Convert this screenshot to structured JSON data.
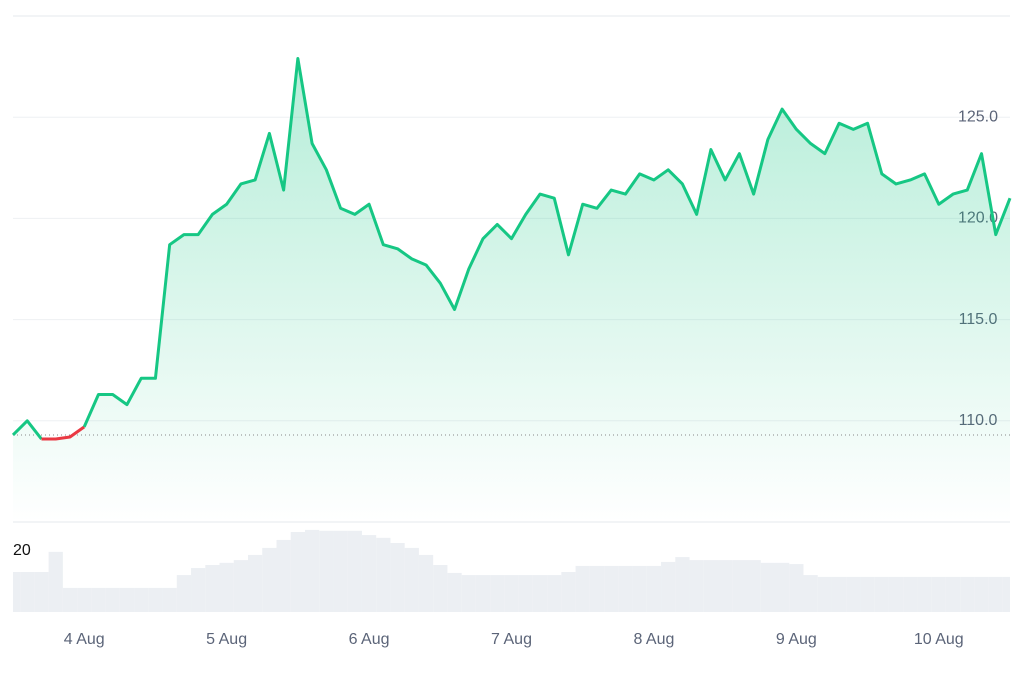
{
  "chart_data": {
    "type": "line",
    "x": [
      3.5,
      3.6,
      3.7,
      3.8,
      3.9,
      4.0,
      4.1,
      4.2,
      4.3,
      4.4,
      4.5,
      4.6,
      4.7,
      4.8,
      4.9,
      5.0,
      5.1,
      5.2,
      5.3,
      5.4,
      5.5,
      5.6,
      5.7,
      5.8,
      5.9,
      6.0,
      6.1,
      6.2,
      6.3,
      6.4,
      6.5,
      6.6,
      6.7,
      6.8,
      6.9,
      7.0,
      7.1,
      7.2,
      7.3,
      7.4,
      7.5,
      7.6,
      7.7,
      7.8,
      7.9,
      8.0,
      8.1,
      8.2,
      8.3,
      8.4,
      8.5,
      8.6,
      8.7,
      8.8,
      8.9,
      9.0,
      9.1,
      9.2,
      9.3,
      9.4,
      9.5,
      9.6,
      9.7,
      9.8,
      9.9,
      10.0,
      10.1,
      10.2,
      10.3,
      10.4,
      10.5
    ],
    "values": [
      109.3,
      110.0,
      109.1,
      109.1,
      109.2,
      109.7,
      111.3,
      111.3,
      110.8,
      112.1,
      112.1,
      118.7,
      119.2,
      119.2,
      120.2,
      120.7,
      121.7,
      121.9,
      124.2,
      121.4,
      127.9,
      123.7,
      122.4,
      120.5,
      120.2,
      120.7,
      118.7,
      118.5,
      118.0,
      117.7,
      116.8,
      115.5,
      117.5,
      119.0,
      119.7,
      119.0,
      120.2,
      121.2,
      121.0,
      118.2,
      120.7,
      120.5,
      121.4,
      121.2,
      122.2,
      121.9,
      122.4,
      121.7,
      120.2,
      123.4,
      121.9,
      123.2,
      121.2,
      123.9,
      125.4,
      124.4,
      123.7,
      123.2,
      124.7,
      124.4,
      124.7,
      122.2,
      121.7,
      121.9,
      122.2,
      120.7,
      121.2,
      121.4,
      123.2,
      119.2,
      121.0
    ],
    "color": "#16c784",
    "down_color": "#ea3943",
    "baseline": 109.3,
    "xlim": [
      3.5,
      10.5
    ],
    "xticks": [
      {
        "value": 4,
        "label": "4 Aug"
      },
      {
        "value": 5,
        "label": "5 Aug"
      },
      {
        "value": 6,
        "label": "6 Aug"
      },
      {
        "value": 7,
        "label": "7 Aug"
      },
      {
        "value": 8,
        "label": "8 Aug"
      },
      {
        "value": 9,
        "label": "9 Aug"
      },
      {
        "value": 10,
        "label": "10 Aug"
      }
    ],
    "ylim": [
      105,
      130
    ],
    "yticks": [
      {
        "value": 110,
        "label": "110.0"
      },
      {
        "value": 115,
        "label": "115.0"
      },
      {
        "value": 120,
        "label": "120.0"
      },
      {
        "value": 125,
        "label": "125.0"
      }
    ],
    "grid": true,
    "volume": {
      "color": "#eceff3",
      "values": [
        13.1,
        13.1,
        13.1,
        19.7,
        7.9,
        7.9,
        7.9,
        7.9,
        7.9,
        7.9,
        7.9,
        7.9,
        12.1,
        14.4,
        15.4,
        16.1,
        17.0,
        18.7,
        21.0,
        23.6,
        26.2,
        26.9,
        26.6,
        26.6,
        26.6,
        25.2,
        24.3,
        22.6,
        21.0,
        18.7,
        15.4,
        12.8,
        12.1,
        12.1,
        12.1,
        12.1,
        12.1,
        12.1,
        12.1,
        13.1,
        15.1,
        15.1,
        15.1,
        15.1,
        15.1,
        15.1,
        16.4,
        18.0,
        17.0,
        17.0,
        17.0,
        17.0,
        17.0,
        16.1,
        16.1,
        15.7,
        12.1,
        11.5,
        11.5,
        11.5,
        11.5,
        11.5,
        11.5,
        11.5,
        11.5,
        11.5,
        11.5,
        11.5,
        11.5,
        11.5,
        11.5
      ],
      "ylim": [
        0,
        28.5
      ],
      "yticks": [
        20
      ]
    }
  }
}
